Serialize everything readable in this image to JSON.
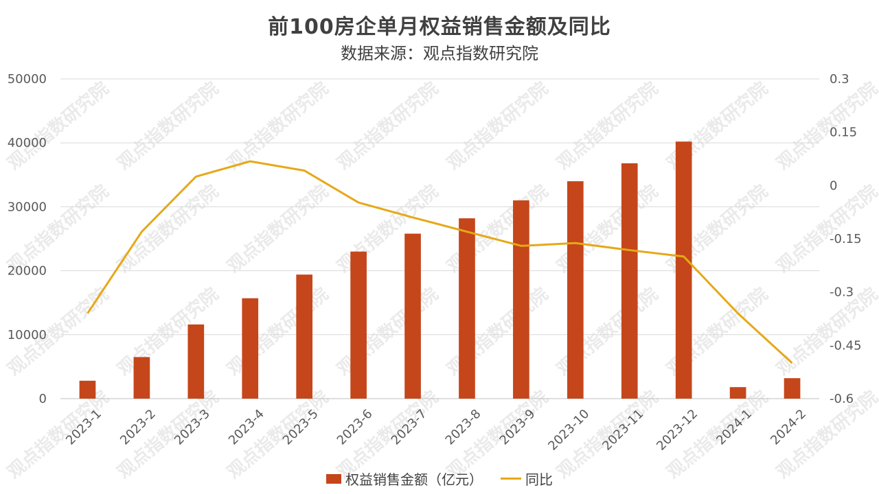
{
  "chart_data": {
    "type": "bar",
    "title": "前100房企单月权益销售金额及同比",
    "subtitle": "数据来源：观点指数研究院",
    "categories": [
      "2023-1",
      "2023-2",
      "2023-3",
      "2023-4",
      "2023-5",
      "2023-6",
      "2023-7",
      "2023-8",
      "2023-9",
      "2023-10",
      "2023-11",
      "2023-12",
      "2024-1",
      "2024-2"
    ],
    "series": [
      {
        "name": "权益销售金额（亿元）",
        "type": "bar",
        "axis": "left",
        "color": "#c5461a",
        "values": [
          2800,
          6500,
          11600,
          15700,
          19400,
          23000,
          25800,
          28200,
          31000,
          34000,
          36800,
          40200,
          1800,
          3200
        ]
      },
      {
        "name": "同比",
        "type": "line",
        "axis": "right",
        "color": "#e6a817",
        "values": [
          -0.36,
          -0.13,
          0.025,
          0.068,
          0.042,
          -0.048,
          -0.09,
          -0.13,
          -0.17,
          -0.162,
          -0.182,
          -0.2,
          -0.36,
          -0.5
        ]
      }
    ],
    "yleft": {
      "ylim": [
        0,
        50000
      ],
      "ticks": [
        "50000",
        "40000",
        "30000",
        "20000",
        "10000",
        "0"
      ]
    },
    "yright": {
      "ylim": [
        -0.6,
        0.3
      ],
      "ticks": [
        "0.3",
        "0.15",
        "0",
        "-0.15",
        "-0.3",
        "-0.45",
        "-0.6"
      ]
    },
    "grid": true,
    "legend_position": "bottom",
    "watermark": "观点指数研究院"
  }
}
